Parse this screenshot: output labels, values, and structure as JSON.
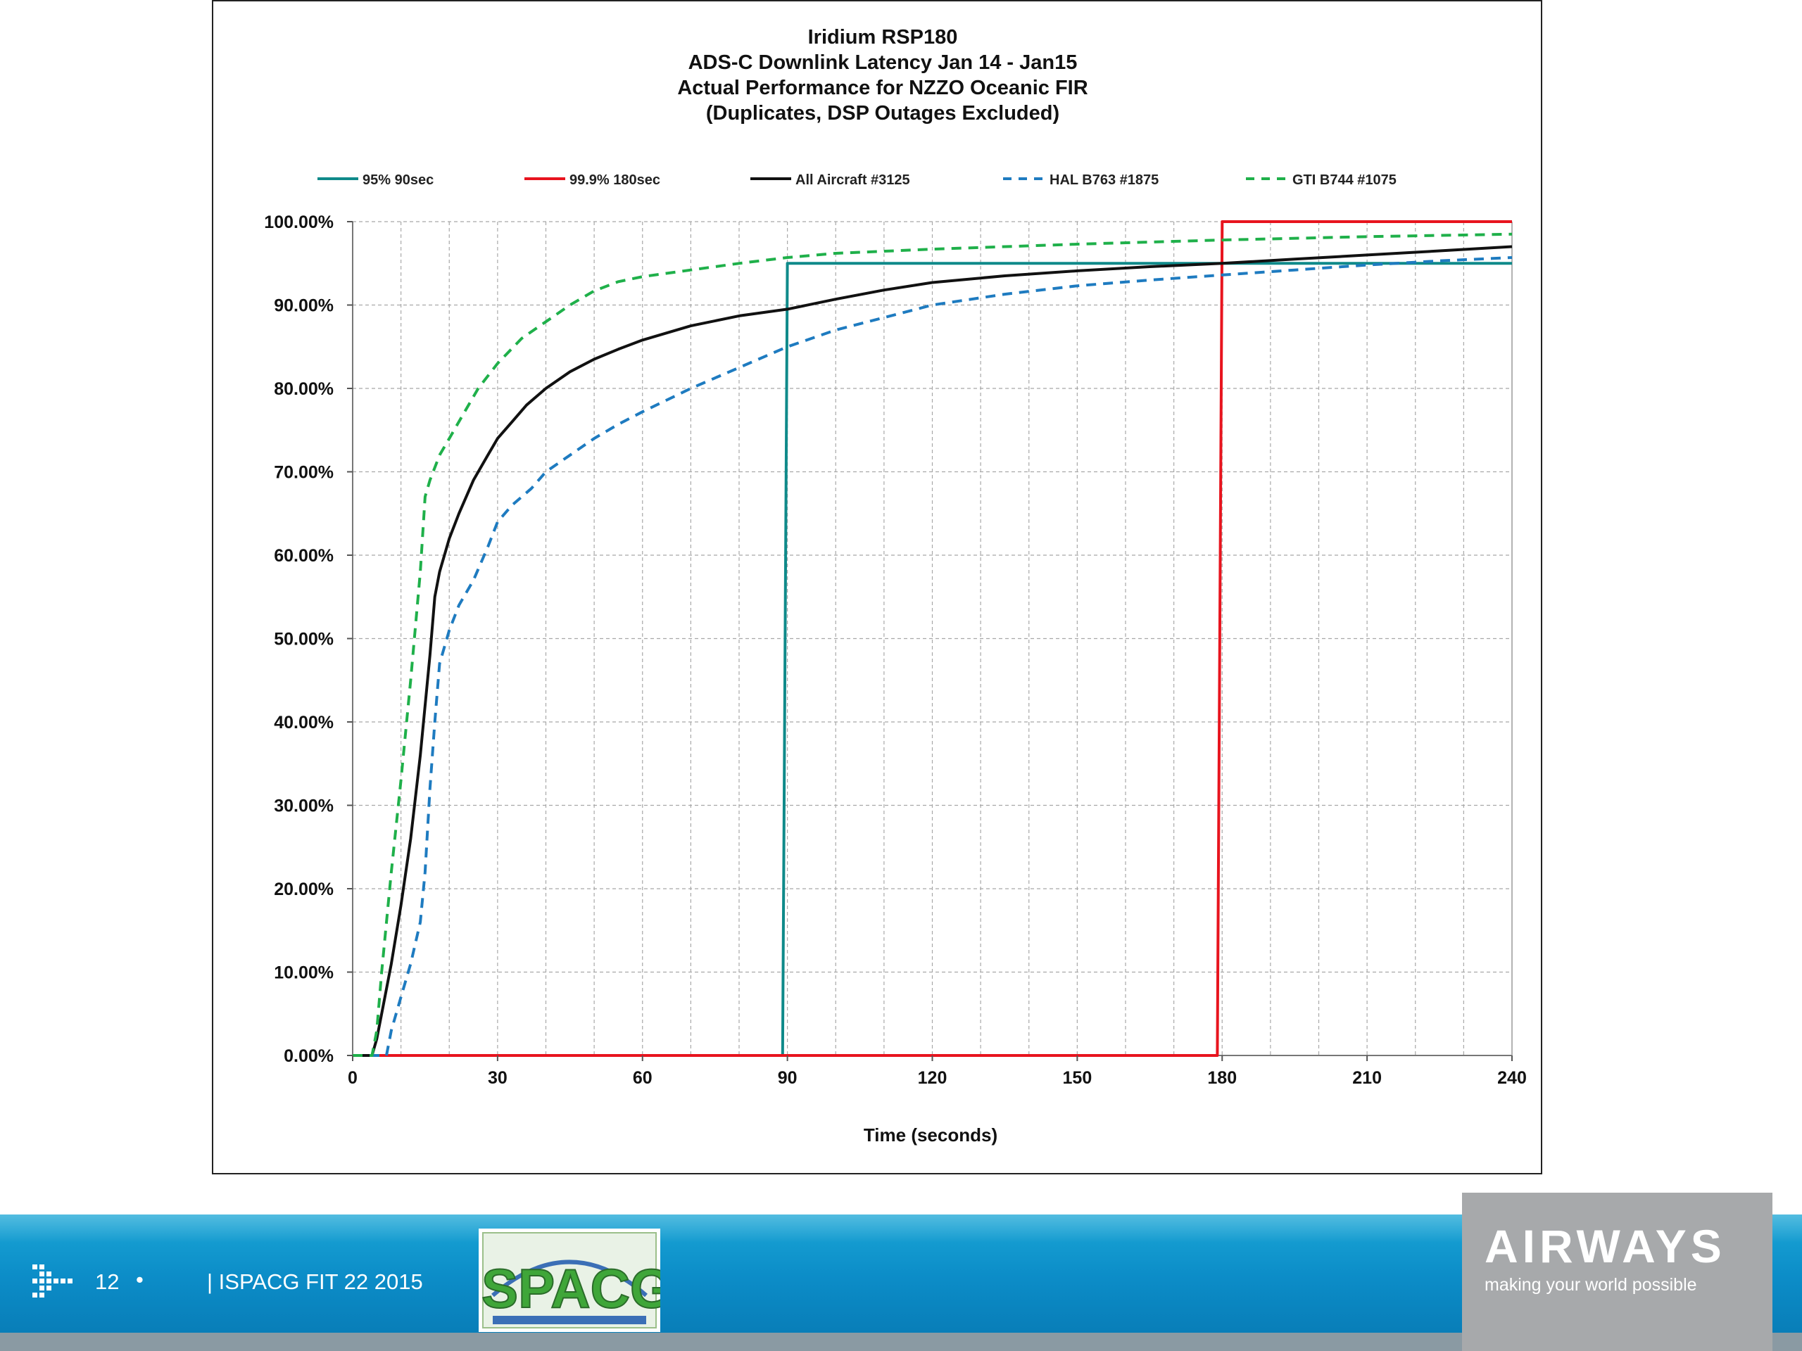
{
  "chart_data": {
    "type": "line",
    "title_lines": [
      "Iridium RSP180",
      "ADS-C Downlink Latency Jan 14 - Jan15",
      "Actual Performance for NZZO Oceanic FIR",
      "(Duplicates, DSP Outages Excluded)"
    ],
    "xlabel": "Time (seconds)",
    "ylabel": "",
    "xlim": [
      0,
      240
    ],
    "ylim": [
      0,
      100
    ],
    "x_ticks": [
      0,
      30,
      60,
      90,
      120,
      150,
      180,
      210,
      240
    ],
    "x_tick_labels": [
      "0",
      "30",
      "60",
      "90",
      "120",
      "150",
      "180",
      "210",
      "240"
    ],
    "y_ticks": [
      0,
      10,
      20,
      30,
      40,
      50,
      60,
      70,
      80,
      90,
      100
    ],
    "y_tick_labels": [
      "0.00%",
      "10.00%",
      "20.00%",
      "30.00%",
      "40.00%",
      "50.00%",
      "60.00%",
      "70.00%",
      "80.00%",
      "90.00%",
      "100.00%"
    ],
    "grid": true,
    "legend_position": "top",
    "series": [
      {
        "name": "95% 90sec",
        "color": "#0f8a8a",
        "dash": "solid",
        "points": [
          [
            89,
            0
          ],
          [
            90,
            95
          ],
          [
            240,
            95
          ]
        ]
      },
      {
        "name": "99.9% 180sec",
        "color": "#e8141e",
        "dash": "solid",
        "points": [
          [
            0,
            0
          ],
          [
            179,
            0
          ],
          [
            180,
            100
          ],
          [
            240,
            100
          ]
        ]
      },
      {
        "name": "All Aircraft #3125",
        "color": "#111111",
        "dash": "solid",
        "points": [
          [
            0,
            0
          ],
          [
            4,
            0
          ],
          [
            5,
            2
          ],
          [
            6,
            5
          ],
          [
            8,
            11
          ],
          [
            10,
            18
          ],
          [
            12,
            26
          ],
          [
            14,
            36
          ],
          [
            16,
            48
          ],
          [
            17,
            55
          ],
          [
            18,
            58
          ],
          [
            20,
            62
          ],
          [
            22,
            65
          ],
          [
            25,
            69
          ],
          [
            28,
            72
          ],
          [
            30,
            74
          ],
          [
            33,
            76
          ],
          [
            36,
            78
          ],
          [
            40,
            80
          ],
          [
            45,
            82
          ],
          [
            50,
            83.5
          ],
          [
            55,
            84.7
          ],
          [
            60,
            85.8
          ],
          [
            70,
            87.5
          ],
          [
            80,
            88.7
          ],
          [
            90,
            89.5
          ],
          [
            100,
            90.7
          ],
          [
            110,
            91.8
          ],
          [
            120,
            92.7
          ],
          [
            135,
            93.5
          ],
          [
            150,
            94.1
          ],
          [
            165,
            94.6
          ],
          [
            180,
            95
          ],
          [
            195,
            95.5
          ],
          [
            210,
            96
          ],
          [
            225,
            96.5
          ],
          [
            240,
            97
          ]
        ]
      },
      {
        "name": "HAL B763 #1875",
        "color": "#1e7bc0",
        "dash": "dashed",
        "points": [
          [
            0,
            0
          ],
          [
            7,
            0
          ],
          [
            8,
            3
          ],
          [
            10,
            7
          ],
          [
            12,
            11
          ],
          [
            14,
            16
          ],
          [
            15,
            22
          ],
          [
            16,
            32
          ],
          [
            17,
            40
          ],
          [
            18,
            47
          ],
          [
            20,
            51
          ],
          [
            22,
            54
          ],
          [
            25,
            57
          ],
          [
            28,
            61
          ],
          [
            30,
            64
          ],
          [
            33,
            66
          ],
          [
            37,
            68
          ],
          [
            40,
            70
          ],
          [
            45,
            72
          ],
          [
            50,
            74
          ],
          [
            55,
            75.7
          ],
          [
            60,
            77.2
          ],
          [
            70,
            80
          ],
          [
            80,
            82.5
          ],
          [
            90,
            85
          ],
          [
            100,
            87
          ],
          [
            110,
            88.5
          ],
          [
            120,
            90
          ],
          [
            135,
            91.3
          ],
          [
            150,
            92.3
          ],
          [
            165,
            93
          ],
          [
            180,
            93.6
          ],
          [
            195,
            94.2
          ],
          [
            210,
            94.8
          ],
          [
            225,
            95.3
          ],
          [
            240,
            95.7
          ]
        ]
      },
      {
        "name": "GTI B744 #1075",
        "color": "#1fb04a",
        "dash": "dashed",
        "points": [
          [
            0,
            0
          ],
          [
            4,
            0
          ],
          [
            5,
            3
          ],
          [
            6,
            10
          ],
          [
            8,
            22
          ],
          [
            10,
            33
          ],
          [
            12,
            45
          ],
          [
            14,
            58
          ],
          [
            15,
            67
          ],
          [
            16,
            69
          ],
          [
            18,
            72
          ],
          [
            20,
            74
          ],
          [
            23,
            77
          ],
          [
            26,
            80
          ],
          [
            30,
            83
          ],
          [
            35,
            86
          ],
          [
            40,
            88
          ],
          [
            45,
            90
          ],
          [
            50,
            91.7
          ],
          [
            55,
            92.8
          ],
          [
            60,
            93.4
          ],
          [
            70,
            94.2
          ],
          [
            80,
            95
          ],
          [
            90,
            95.7
          ],
          [
            100,
            96.2
          ],
          [
            120,
            96.7
          ],
          [
            150,
            97.3
          ],
          [
            180,
            97.8
          ],
          [
            210,
            98.2
          ],
          [
            240,
            98.5
          ]
        ]
      }
    ]
  },
  "footer": {
    "page_number": "12",
    "bullet": "•",
    "event_text": "| ISPACG FIT 22 2015",
    "ispacg_logo_text": "ISPACG",
    "airways_name": "AIRWAYS",
    "airways_tagline": "making your world possible"
  },
  "colors": {
    "footer_blue": "#0c8dc8",
    "airways_grey": "#a7a9ab"
  }
}
